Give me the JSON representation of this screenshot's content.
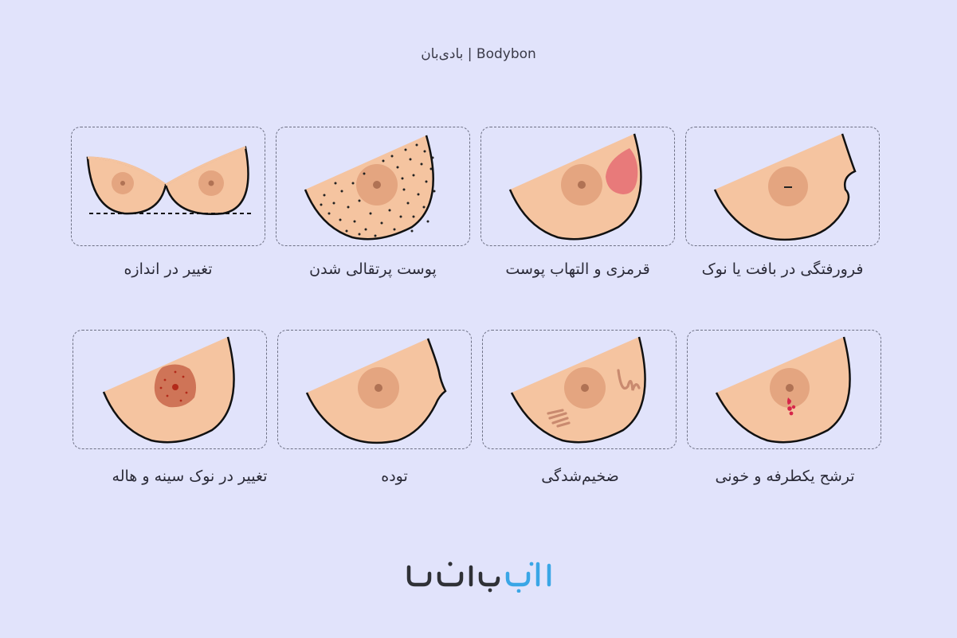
{
  "header": {
    "title": "بادی‌بان | Bodybon"
  },
  "colors": {
    "background": "#e1e3fb",
    "skin": "#f5c4a0",
    "areola": "#e4a580",
    "nipple": "#b07254",
    "accent_blue": "#3aa6e6"
  },
  "cards": [
    {
      "label": "تغییر در اندازه"
    },
    {
      "label": "پوست پرتقالی شدن"
    },
    {
      "label": "قرمزی و التهاب پوست"
    },
    {
      "label": "فرورفتگی در بافت یا نوک"
    },
    {
      "label": "تغییر در نوک سینه و هاله"
    },
    {
      "label": "توده"
    },
    {
      "label": "ضخیم‌شدگی"
    },
    {
      "label": "ترشح یکطرفه و خونی"
    }
  ],
  "logo": {
    "text": "بادی‌بان",
    "icon": "bodybon-logo"
  }
}
